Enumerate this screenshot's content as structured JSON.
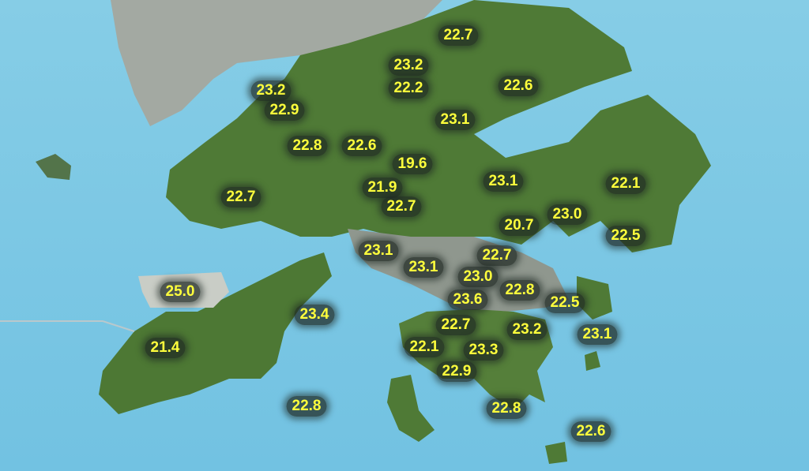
{
  "colors": {
    "sea": "#7cc8e4",
    "land": "#4e7a35",
    "urban": "#9aa29a",
    "label_text": "#ffff3c",
    "label_bg": "#1e2823"
  },
  "units": "°C",
  "stations": [
    {
      "value": "22.7"
    },
    {
      "value": "23.2"
    },
    {
      "value": "22.2"
    },
    {
      "value": "23.2"
    },
    {
      "value": "22.9"
    },
    {
      "value": "22.6"
    },
    {
      "value": "23.1"
    },
    {
      "value": "22.8"
    },
    {
      "value": "22.6"
    },
    {
      "value": "19.6"
    },
    {
      "value": "22.1"
    },
    {
      "value": "23.1"
    },
    {
      "value": "22.7"
    },
    {
      "value": "21.9"
    },
    {
      "value": "22.7"
    },
    {
      "value": "23.0"
    },
    {
      "value": "20.7"
    },
    {
      "value": "22.5"
    },
    {
      "value": "23.1"
    },
    {
      "value": "23.1"
    },
    {
      "value": "22.7"
    },
    {
      "value": "23.0"
    },
    {
      "value": "22.8"
    },
    {
      "value": "25.0"
    },
    {
      "value": "23.6"
    },
    {
      "value": "22.5"
    },
    {
      "value": "23.4"
    },
    {
      "value": "22.7"
    },
    {
      "value": "23.2"
    },
    {
      "value": "23.1"
    },
    {
      "value": "21.4"
    },
    {
      "value": "22.1"
    },
    {
      "value": "23.3"
    },
    {
      "value": "22.9"
    },
    {
      "value": "22.8"
    },
    {
      "value": "22.8"
    },
    {
      "value": "22.6"
    }
  ]
}
